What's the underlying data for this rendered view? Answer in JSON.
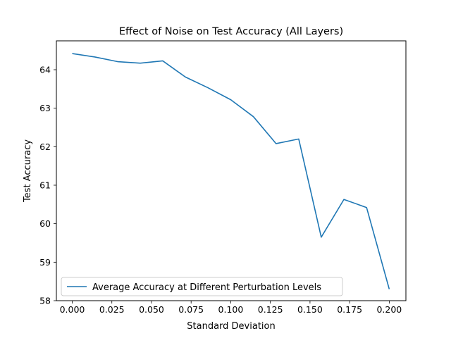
{
  "chart_data": {
    "type": "line",
    "title": "Effect of Noise on Test Accuracy (All Layers)",
    "xlabel": "Standard Deviation",
    "ylabel": "Test Accuracy",
    "xlim": [
      -0.01,
      0.2105
    ],
    "ylim": [
      58.0,
      64.75
    ],
    "xticks": [
      0.0,
      0.025,
      0.05,
      0.075,
      0.1,
      0.125,
      0.15,
      0.175,
      0.2
    ],
    "xtick_labels": [
      "0.000",
      "0.025",
      "0.050",
      "0.075",
      "0.100",
      "0.125",
      "0.150",
      "0.175",
      "0.200"
    ],
    "yticks": [
      58,
      59,
      60,
      61,
      62,
      63,
      64
    ],
    "ytick_labels": [
      "58",
      "59",
      "60",
      "61",
      "62",
      "63",
      "64"
    ],
    "grid": false,
    "legend_position": "lower-left",
    "series": [
      {
        "name": "Average Accuracy at Different Perturbation Levels",
        "color": "#1f77b4",
        "x": [
          0.0,
          0.0143,
          0.0286,
          0.0429,
          0.0571,
          0.0714,
          0.0857,
          0.1,
          0.1143,
          0.1286,
          0.1429,
          0.1571,
          0.1714,
          0.1857,
          0.2
        ],
        "y": [
          64.42,
          64.33,
          64.21,
          64.17,
          64.23,
          63.81,
          63.53,
          63.22,
          62.78,
          62.08,
          62.2,
          59.65,
          60.63,
          60.42,
          58.3
        ]
      }
    ]
  }
}
